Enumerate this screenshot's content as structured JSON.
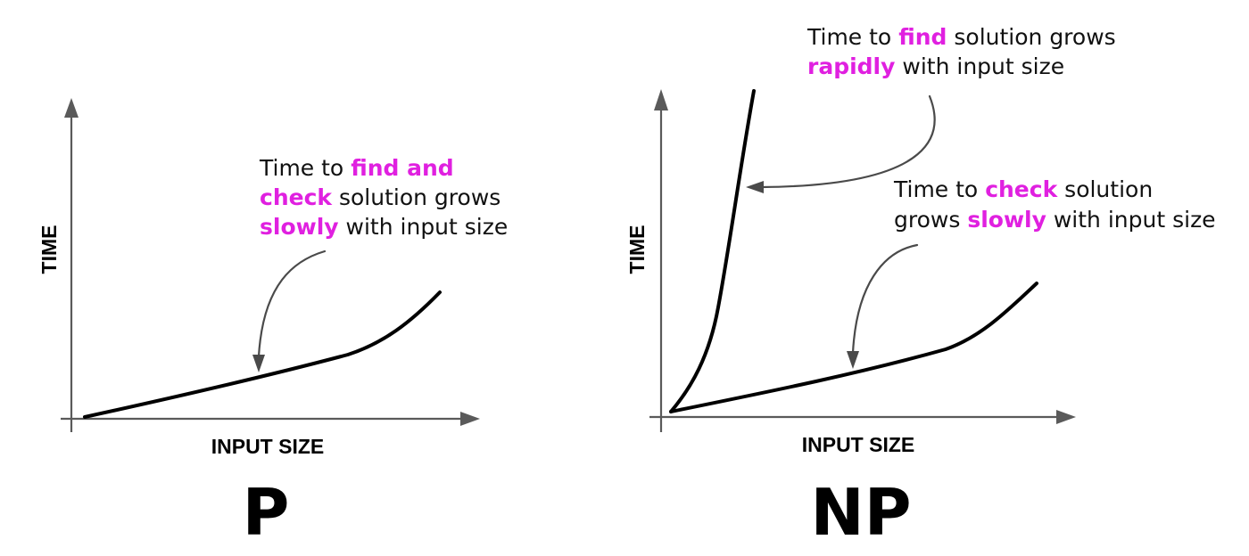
{
  "panels": [
    {
      "id": "p",
      "caption": "P",
      "x_axis_label": "INPUT SIZE",
      "y_axis_label": "TIME",
      "annotations": [
        {
          "lines": [
            [
              {
                "t": "Time to ",
                "hl": false
              },
              {
                "t": "find and",
                "hl": true
              }
            ],
            [
              {
                "t": "check",
                "hl": true
              },
              {
                "t": " solution grows",
                "hl": false
              }
            ],
            [
              {
                "t": "slowly",
                "hl": true
              },
              {
                "t": " with input size",
                "hl": false
              }
            ]
          ]
        }
      ]
    },
    {
      "id": "np",
      "caption": "NP",
      "x_axis_label": "INPUT SIZE",
      "y_axis_label": "TIME",
      "annotations": [
        {
          "lines": [
            [
              {
                "t": "Time to ",
                "hl": false
              },
              {
                "t": "find",
                "hl": true
              },
              {
                "t": " solution grows",
                "hl": false
              }
            ],
            [
              {
                "t": "rapidly",
                "hl": true
              },
              {
                "t": " with input size",
                "hl": false
              }
            ]
          ]
        },
        {
          "lines": [
            [
              {
                "t": "Time to ",
                "hl": false
              },
              {
                "t": "check",
                "hl": true
              },
              {
                "t": " solution",
                "hl": false
              }
            ],
            [
              {
                "t": "grows ",
                "hl": false
              },
              {
                "t": "slowly",
                "hl": true
              },
              {
                "t": " with input size",
                "hl": false
              }
            ]
          ]
        }
      ]
    }
  ],
  "colors": {
    "highlight": "#e020e0",
    "curve": "#000000",
    "axis": "#5a5a5a",
    "background": "#ffffff"
  }
}
